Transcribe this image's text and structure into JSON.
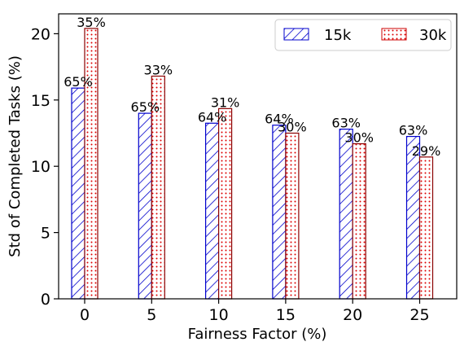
{
  "chart_data": {
    "type": "bar",
    "categories": [
      "0",
      "5",
      "10",
      "15",
      "20",
      "25"
    ],
    "series": [
      {
        "name": "15k",
        "values": [
          15.9,
          14.0,
          13.25,
          13.1,
          12.8,
          12.25
        ],
        "labels": [
          "65%",
          "65%",
          "64%",
          "64%",
          "63%",
          "63%"
        ],
        "color": "#0000cc",
        "pattern": "diagonal-hatch"
      },
      {
        "name": "30k",
        "values": [
          20.4,
          16.8,
          14.35,
          12.5,
          11.7,
          10.7
        ],
        "labels": [
          "35%",
          "33%",
          "31%",
          "30%",
          "30%",
          "29%"
        ],
        "color": "#cc0000",
        "pattern": "dots"
      }
    ],
    "xlabel": "Fairness Factor (%)",
    "ylabel": "Std of Completed Tasks (%)",
    "ylim": [
      0,
      21.5
    ],
    "yticks": [
      0,
      5,
      10,
      15,
      20
    ],
    "legend_position": "top-right",
    "grid": false
  }
}
